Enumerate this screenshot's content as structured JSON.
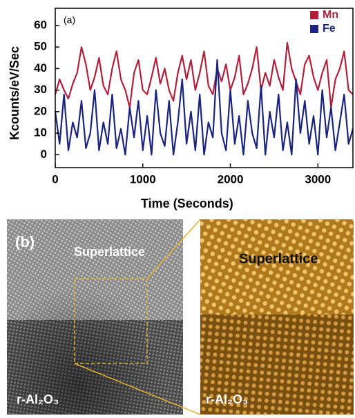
{
  "chart_data": {
    "type": "line",
    "panel_label": "(a)",
    "xlabel": "Time (Seconds)",
    "ylabel": "Kcounts/eV/Sec",
    "x": [
      0,
      50,
      100,
      150,
      200,
      250,
      300,
      350,
      400,
      450,
      500,
      550,
      600,
      650,
      700,
      750,
      800,
      850,
      900,
      950,
      1000,
      1050,
      1100,
      1150,
      1200,
      1250,
      1300,
      1350,
      1400,
      1450,
      1500,
      1550,
      1600,
      1650,
      1700,
      1750,
      1800,
      1850,
      1900,
      1950,
      2000,
      2050,
      2100,
      2150,
      2200,
      2250,
      2300,
      2350,
      2400,
      2450,
      2500,
      2550,
      2600,
      2650,
      2700,
      2750,
      2800,
      2850,
      2900,
      2950,
      3000,
      3050,
      3100,
      3150,
      3200,
      3250,
      3300,
      3350,
      3400
    ],
    "series": [
      {
        "name": "Mn",
        "color": "#b0203a",
        "values": [
          28,
          35,
          30,
          26,
          33,
          38,
          50,
          42,
          30,
          36,
          45,
          32,
          28,
          40,
          48,
          35,
          30,
          22,
          38,
          44,
          30,
          28,
          36,
          45,
          33,
          40,
          30,
          25,
          38,
          46,
          35,
          44,
          30,
          38,
          48,
          32,
          28,
          40,
          34,
          42,
          30,
          36,
          46,
          28,
          33,
          40,
          50,
          30,
          38,
          32,
          44,
          36,
          30,
          52,
          40,
          34,
          28,
          42,
          46,
          36,
          30,
          38,
          44,
          22,
          35,
          40,
          48,
          30,
          28
        ]
      },
      {
        "name": "Fe",
        "color": "#1a237e",
        "values": [
          20,
          5,
          28,
          2,
          15,
          8,
          25,
          3,
          10,
          30,
          2,
          15,
          5,
          28,
          3,
          12,
          0,
          22,
          8,
          25,
          2,
          18,
          0,
          30,
          10,
          4,
          25,
          0,
          15,
          35,
          5,
          20,
          2,
          28,
          0,
          15,
          8,
          44,
          10,
          2,
          30,
          5,
          18,
          0,
          25,
          10,
          3,
          32,
          0,
          20,
          8,
          28,
          2,
          15,
          0,
          35,
          10,
          25,
          5,
          18,
          0,
          30,
          8,
          22,
          2,
          15,
          28,
          5,
          12
        ]
      }
    ],
    "xlim": [
      0,
      3400
    ],
    "xticks": [
      0,
      1000,
      2000,
      3000
    ],
    "ylim": [
      -6,
      68
    ],
    "yticks": [
      0,
      10,
      20,
      30,
      40,
      50,
      60
    ],
    "legend": "upper right"
  },
  "panel_b": {
    "label": "(b)",
    "left_top": "Superlattice",
    "left_bottom": "r-Al₂O₃",
    "right_top": "Superlattice",
    "right_bottom": "r-Al₂O₃"
  }
}
